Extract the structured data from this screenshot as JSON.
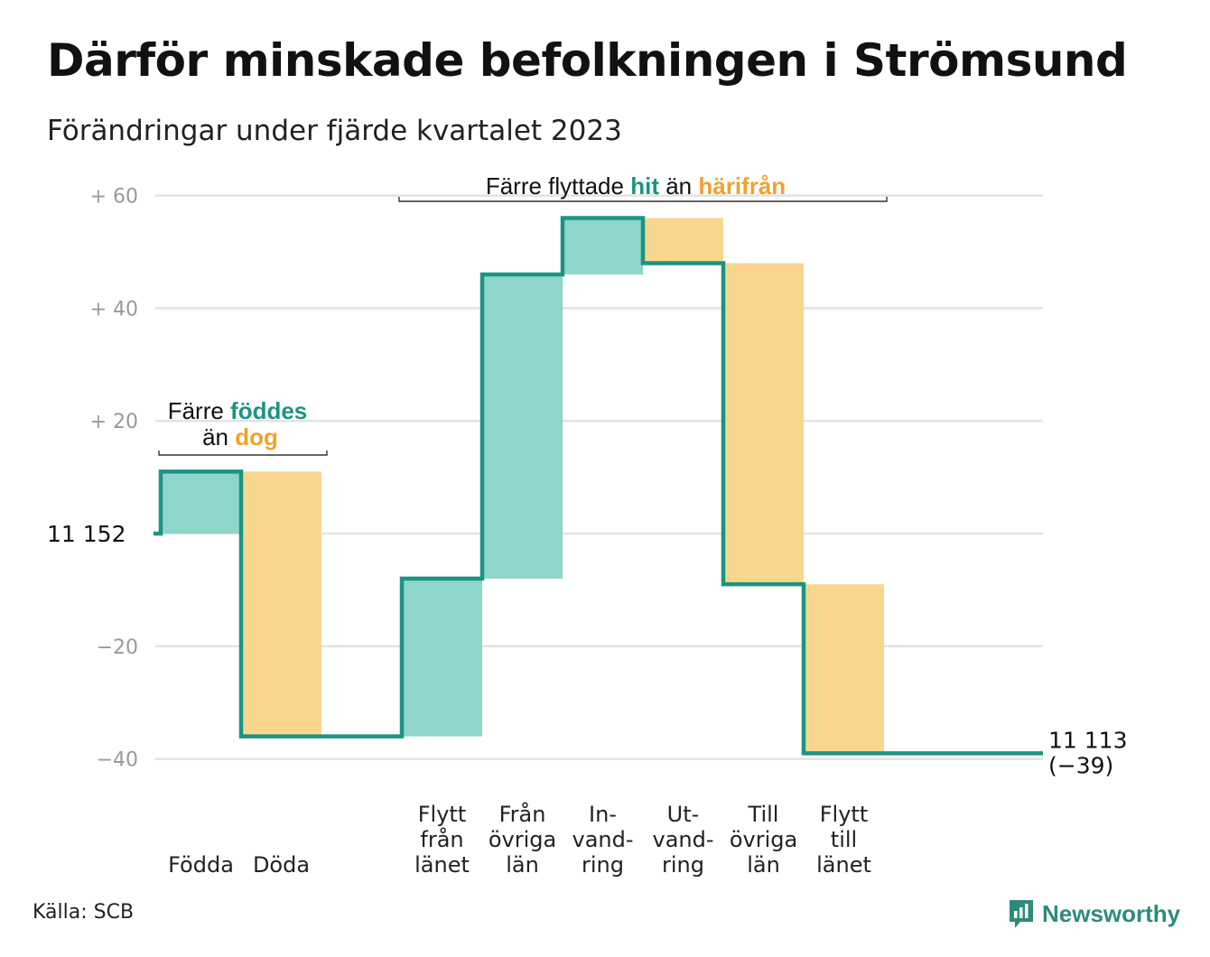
{
  "title": "Därför minskade befolkningen i Strömsund",
  "subtitle": "Förändringar under fjärde kvartalet 2023",
  "source": "Källa: SCB",
  "logo": {
    "text": "Newsworthy",
    "icon": "newsworthy-logo-icon"
  },
  "colors": {
    "increase_fill": "#8ed5cb",
    "decrease_fill": "#f9d68e",
    "line": "#1b9484",
    "teal_text": "#1b9484",
    "orange_text": "#f0a22d",
    "grid": "#e3e3e3",
    "tick_text": "#999999"
  },
  "chart_data": {
    "type": "waterfall",
    "start_value": 11152,
    "start_label": "11  152",
    "end_value": 11113,
    "end_label": "11 113",
    "end_change_label": "(−39)",
    "ylim": [
      -40,
      60
    ],
    "y_ticks": [
      {
        "value": 60,
        "label": "+  60"
      },
      {
        "value": 40,
        "label": "+  40"
      },
      {
        "value": 20,
        "label": "+  20"
      },
      {
        "value": 0,
        "label": ""
      },
      {
        "value": -20,
        "label": "−20"
      },
      {
        "value": -40,
        "label": "−40"
      }
    ],
    "steps": [
      {
        "category": [
          "Födda"
        ],
        "change": 11,
        "kind": "increase"
      },
      {
        "category": [
          "Döda"
        ],
        "change": -47,
        "kind": "decrease"
      },
      {
        "category": [],
        "change": 0,
        "kind": "gap"
      },
      {
        "category": [
          "Flytt",
          "från",
          "länet"
        ],
        "change": 28,
        "kind": "increase"
      },
      {
        "category": [
          "Från",
          "övriga",
          "län"
        ],
        "change": 54,
        "kind": "increase"
      },
      {
        "category": [
          "In-",
          "vand-",
          "ring"
        ],
        "change": 10,
        "kind": "increase"
      },
      {
        "category": [
          "Ut-",
          "vand-",
          "ring"
        ],
        "change": -8,
        "kind": "decrease"
      },
      {
        "category": [
          "Till",
          "övriga",
          "län"
        ],
        "change": -57,
        "kind": "decrease"
      },
      {
        "category": [
          "Flytt",
          "till",
          "länet"
        ],
        "change": -30,
        "kind": "decrease"
      }
    ],
    "annotations": [
      {
        "id": "births",
        "line1": [
          {
            "text": "Färre ",
            "color": "plain"
          },
          {
            "text": "föddes",
            "color": "teal"
          }
        ],
        "line2": [
          {
            "text": "än ",
            "color": "plain"
          },
          {
            "text": "dog",
            "color": "orange"
          }
        ]
      },
      {
        "id": "migration",
        "line1": [
          {
            "text": "Färre flyttade ",
            "color": "plain"
          },
          {
            "text": "hit",
            "color": "teal"
          },
          {
            "text": " än ",
            "color": "plain"
          },
          {
            "text": "härifrån",
            "color": "orange"
          }
        ]
      }
    ]
  }
}
